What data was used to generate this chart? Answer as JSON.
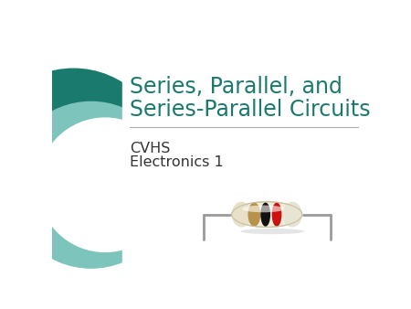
{
  "bg_color": "#ffffff",
  "title_line1": "Series, Parallel, and",
  "title_line2": "Series-Parallel Circuits",
  "title_color": "#1a7a6e",
  "subtitle1": "CVHS",
  "subtitle2": "Electronics 1",
  "subtitle_color": "#333333",
  "line_color": "#b0b0b0",
  "circle_dark_color": "#1a7a6e",
  "circle_light_color": "#7cc4bc",
  "title_fontsize": 17,
  "subtitle_fontsize": 11.5
}
